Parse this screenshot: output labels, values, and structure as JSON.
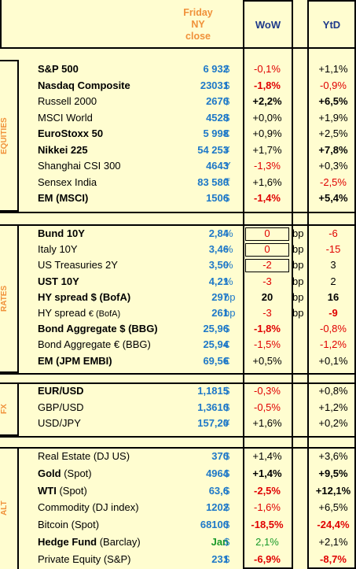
{
  "header": {
    "friday_line1": "Friday",
    "friday_line2": "NY",
    "friday_line3": "close",
    "wow": "WoW",
    "ytd": "YtD"
  },
  "sections": [
    {
      "label": "EQUITIES",
      "rows": [
        {
          "name": "S&P 500",
          "bold": true,
          "value": "6 932",
          "unit": "$",
          "wow": "-0,1%",
          "wow_bold": false,
          "wow_neg": true,
          "ytd": "+1,1%",
          "ytd_bold": false,
          "ytd_neg": false
        },
        {
          "name": "Nasdaq Composite",
          "bold": true,
          "value": "23031",
          "unit": "$",
          "wow": "-1,8%",
          "wow_bold": true,
          "wow_neg": true,
          "ytd": "-0,9%",
          "ytd_bold": false,
          "ytd_neg": true
        },
        {
          "name": "Russell 2000",
          "bold": false,
          "value": "2670",
          "unit": "$",
          "wow": "+2,2%",
          "wow_bold": true,
          "wow_neg": false,
          "ytd": "+6,5%",
          "ytd_bold": true,
          "ytd_neg": false
        },
        {
          "name": "MSCI World",
          "bold": false,
          "value": "4528",
          "unit": "$",
          "wow": "+0,0%",
          "wow_bold": false,
          "wow_neg": false,
          "ytd": "+1,9%",
          "ytd_bold": false,
          "ytd_neg": false
        },
        {
          "name": "EuroStoxx 50",
          "bold": true,
          "value": "5 998",
          "unit": "€",
          "wow": "+0,9%",
          "wow_bold": false,
          "wow_neg": false,
          "ytd": "+2,5%",
          "ytd_bold": false,
          "ytd_neg": false
        },
        {
          "name": "Nikkei 225",
          "bold": true,
          "value": "54 253",
          "unit": "¥",
          "wow": "+1,7%",
          "wow_bold": false,
          "wow_neg": false,
          "ytd": "+7,8%",
          "ytd_bold": true,
          "ytd_neg": false
        },
        {
          "name": "Shanghai CSI 300",
          "bold": false,
          "value": "4643",
          "unit": "Y",
          "wow": "-1,3%",
          "wow_bold": false,
          "wow_neg": true,
          "ytd": "+0,3%",
          "ytd_bold": false,
          "ytd_neg": false
        },
        {
          "name": "Sensex India",
          "bold": false,
          "value": "83 580",
          "unit": "₹",
          "wow": "+1,6%",
          "wow_bold": false,
          "wow_neg": false,
          "ytd": "-2,5%",
          "ytd_bold": false,
          "ytd_neg": true
        },
        {
          "name": "EM (MSCI)",
          "bold": true,
          "value": "1506",
          "unit": "$",
          "wow": "-1,4%",
          "wow_bold": true,
          "wow_neg": true,
          "ytd": "+5,4%",
          "ytd_bold": true,
          "ytd_neg": false
        }
      ]
    },
    {
      "label": "RATES",
      "rows": [
        {
          "name": "Bund 10Y",
          "bold": true,
          "value": "2,84",
          "unit": "%",
          "wow": "0",
          "wow_bold": false,
          "wow_neg": true,
          "bp": "bp",
          "ytd": "-6",
          "ytd_bold": false,
          "ytd_neg": true,
          "boxed": true
        },
        {
          "name": "Italy 10Y",
          "bold": false,
          "value": "3,46",
          "unit": "%",
          "wow": "0",
          "wow_bold": false,
          "wow_neg": true,
          "bp": "bp",
          "ytd": "-15",
          "ytd_bold": false,
          "ytd_neg": true,
          "boxed": true
        },
        {
          "name": "US Treasuries 2Y",
          "bold": false,
          "value": "3,50",
          "unit": "%",
          "wow": "-2",
          "wow_bold": false,
          "wow_neg": true,
          "bp": "bp",
          "ytd": "3",
          "ytd_bold": false,
          "ytd_neg": false,
          "boxed": true
        },
        {
          "name": "UST 10Y",
          "bold": true,
          "value": "4,21",
          "unit": "%",
          "wow": "-3",
          "wow_bold": false,
          "wow_neg": true,
          "bp": "bp",
          "ytd": "2",
          "ytd_bold": false,
          "ytd_neg": false
        },
        {
          "name": "HY spread $ (BofA)",
          "bold": true,
          "value": "297",
          "unit": "bp",
          "wow": "20",
          "wow_bold": true,
          "wow_neg": false,
          "bp": "bp",
          "ytd": "16",
          "ytd_bold": true,
          "ytd_neg": false
        },
        {
          "name": "HY spread",
          "name_small": "€ (BofA)",
          "bold": false,
          "value": "261",
          "unit": "bp",
          "wow": "-3",
          "wow_bold": false,
          "wow_neg": true,
          "bp": "bp",
          "ytd": "-9",
          "ytd_bold": true,
          "ytd_neg": true
        },
        {
          "name": "Bond Aggregate $ (BBG)",
          "bold": true,
          "value": "25,96",
          "unit": "$",
          "wow": "-1,8%",
          "wow_bold": true,
          "wow_neg": true,
          "ytd": "-0,8%",
          "ytd_bold": false,
          "ytd_neg": true
        },
        {
          "name": "Bond Aggregate € (BBG)",
          "bold": false,
          "value": "25,94",
          "unit": "€",
          "wow": "-1,5%",
          "wow_bold": false,
          "wow_neg": true,
          "ytd": "-1,2%",
          "ytd_bold": false,
          "ytd_neg": true
        },
        {
          "name": "EM (JPM EMBI)",
          "bold": true,
          "value": "69,56",
          "unit": "€",
          "wow": "+0,5%",
          "wow_bold": false,
          "wow_neg": false,
          "ytd": "+0,1%",
          "ytd_bold": false,
          "ytd_neg": false
        }
      ]
    },
    {
      "label": "FX",
      "rows": [
        {
          "name": "EUR/USD",
          "bold": true,
          "value": "1,1815",
          "unit": "$",
          "wow": "-0,3%",
          "wow_bold": false,
          "wow_neg": true,
          "ytd": "+0,8%",
          "ytd_bold": false,
          "ytd_neg": false
        },
        {
          "name": "GBP/USD",
          "bold": false,
          "value": "1,3610",
          "unit": "$",
          "wow": "-0,5%",
          "wow_bold": false,
          "wow_neg": true,
          "ytd": "+1,2%",
          "ytd_bold": false,
          "ytd_neg": false
        },
        {
          "name": "USD/JPY",
          "bold": false,
          "value": "157,20",
          "unit": "¥",
          "wow": "+1,6%",
          "wow_bold": false,
          "wow_neg": false,
          "ytd": "+0,2%",
          "ytd_bold": false,
          "ytd_neg": false
        }
      ]
    },
    {
      "label": "ALT",
      "rows": [
        {
          "name": "Real Estate (DJ US)",
          "bold": false,
          "value": "370",
          "unit": "$",
          "wow": "+1,4%",
          "wow_bold": false,
          "wow_neg": false,
          "ytd": "+3,6%",
          "ytd_bold": false,
          "ytd_neg": false
        },
        {
          "name": "Gold (Spot)",
          "bold": true,
          "name_split": [
            "Gold",
            " (Spot)"
          ],
          "value": "4964",
          "unit": "$",
          "wow": "+1,4%",
          "wow_bold": true,
          "wow_neg": false,
          "ytd": "+9,5%",
          "ytd_bold": true,
          "ytd_neg": false
        },
        {
          "name": "WTI (Spot)",
          "bold": true,
          "name_split": [
            "WTI",
            " (Spot)"
          ],
          "value": "63,6",
          "unit": "$",
          "wow": "-2,5%",
          "wow_bold": true,
          "wow_neg": true,
          "ytd": "+12,1%",
          "ytd_bold": true,
          "ytd_neg": false
        },
        {
          "name": "Commodity (DJ index)",
          "bold": false,
          "value": "1202",
          "unit": "$",
          "wow": "-1,6%",
          "wow_bold": false,
          "wow_neg": true,
          "ytd": "+6,5%",
          "ytd_bold": false,
          "ytd_neg": false
        },
        {
          "name": "Bitcoin (Spot)",
          "bold": false,
          "value": "68100",
          "unit": "$",
          "wow": "-18,5%",
          "wow_bold": true,
          "wow_neg": true,
          "ytd": "-24,4%",
          "ytd_bold": true,
          "ytd_neg": true
        },
        {
          "name": "Hedge Fund (Barclay)",
          "bold": true,
          "name_split": [
            "Hedge Fund",
            " (Barclay)"
          ],
          "value": "Jan",
          "value_green": true,
          "unit": "$",
          "wow": "2,1%",
          "wow_bold": false,
          "wow_neg": false,
          "wow_green": true,
          "ytd": "+2,1%",
          "ytd_bold": false,
          "ytd_neg": false
        },
        {
          "name": "Private Equity (S&P)",
          "bold": false,
          "value": "231",
          "unit": "$",
          "wow": "-6,9%",
          "wow_bold": true,
          "wow_neg": true,
          "ytd": "-8,7%",
          "ytd_bold": true,
          "ytd_neg": true
        }
      ]
    }
  ]
}
